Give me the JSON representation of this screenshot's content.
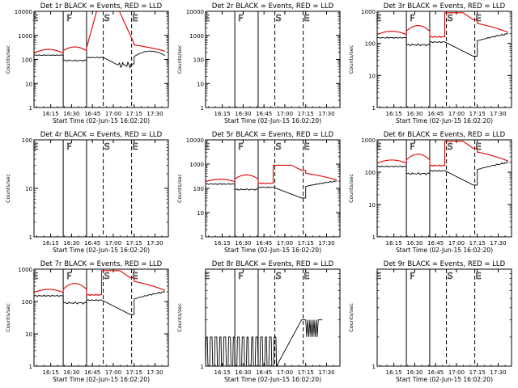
{
  "figure": {
    "start_label": "Start Time (02-Jun-15 16:02:20)",
    "ylabel": "Counts/sec"
  },
  "chart_data": [
    {
      "type": "line",
      "title": "Det 1r  BLACK = Events, RED = LLD",
      "ylim": [
        1,
        10000
      ],
      "yticks": [
        1,
        10,
        100,
        1000,
        10000
      ],
      "xlim": [
        16.05,
        17.66
      ],
      "xticks": [
        "16:15",
        "16:30",
        "16:45",
        "17:00",
        "17:15",
        "17:30"
      ],
      "markers": [
        "E",
        "F",
        "S",
        "E"
      ],
      "red_line": "vert"
    },
    {
      "type": "line",
      "title": "Det 2r  BLACK = Events, RED = LLD",
      "ylim": [
        1,
        10000
      ],
      "yticks": [
        1,
        10,
        100,
        1000,
        10000
      ],
      "xlim": [
        16.05,
        17.66
      ],
      "xticks": [
        "16:15",
        "16:30",
        "16:45",
        "17:00",
        "17:15",
        "17:30"
      ],
      "markers": [
        "E",
        "F",
        "S",
        "E"
      ],
      "red_line": "none"
    },
    {
      "type": "line",
      "title": "Det 3r  BLACK = Events, RED = LLD",
      "ylim": [
        1,
        1000
      ],
      "yticks": [
        1,
        10,
        100,
        1000
      ],
      "xlim": [
        16.05,
        17.66
      ],
      "xticks": [
        "16:15",
        "16:30",
        "16:45",
        "17:00",
        "17:15",
        "17:30"
      ],
      "markers": [
        "E",
        "F",
        "S",
        "E"
      ],
      "red_line": "step"
    },
    {
      "type": "line",
      "title": "Det 4r  BLACK = Events, RED = LLD",
      "ylim": [
        1,
        100
      ],
      "yticks": [
        1,
        10,
        100
      ],
      "xlim": [
        16.05,
        17.66
      ],
      "xticks": [
        "16:15",
        "16:30",
        "16:45",
        "17:00",
        "17:15",
        "17:30"
      ],
      "markers": [
        "E",
        "F",
        "S",
        "E"
      ],
      "red_line": "none"
    },
    {
      "type": "line",
      "title": "Det 5r  BLACK = Events, RED = LLD",
      "ylim": [
        1,
        10000
      ],
      "yticks": [
        1,
        10,
        100,
        1000,
        10000
      ],
      "xlim": [
        16.05,
        17.66
      ],
      "xticks": [
        "16:15",
        "16:30",
        "16:45",
        "17:00",
        "17:15",
        "17:30"
      ],
      "markers": [
        "E",
        "F",
        "S",
        "E"
      ],
      "red_line": "step"
    },
    {
      "type": "line",
      "title": "Det 6r  BLACK = Events, RED = LLD",
      "ylim": [
        1,
        1000
      ],
      "yticks": [
        1,
        10,
        100,
        1000
      ],
      "xlim": [
        16.05,
        17.66
      ],
      "xticks": [
        "16:15",
        "16:30",
        "16:45",
        "17:00",
        "17:15",
        "17:30"
      ],
      "markers": [
        "E",
        "F",
        "S",
        "E"
      ],
      "red_line": "step"
    },
    {
      "type": "line",
      "title": "Det 7r  BLACK = Events, RED = LLD",
      "ylim": [
        1,
        1000
      ],
      "yticks": [
        1,
        10,
        100,
        1000
      ],
      "xlim": [
        16.05,
        17.66
      ],
      "xticks": [
        "16:15",
        "16:30",
        "16:45",
        "17:00",
        "17:15",
        "17:30"
      ],
      "markers": [
        "E",
        "F",
        "S",
        "E"
      ],
      "red_line": "step"
    },
    {
      "type": "line",
      "title": "Det 8r  BLACK = Events, RED = LLD",
      "ylim": [
        1,
        10
      ],
      "yticks": [
        1
      ],
      "xlim": [
        16.05,
        17.66
      ],
      "xticks": [
        "16:15",
        "16:30",
        "16:45",
        "17:00",
        "17:15",
        "17:30"
      ],
      "markers": [
        "E",
        "F",
        "S",
        "E"
      ],
      "red_line": "none"
    },
    {
      "type": "line",
      "title": "Det 9r  BLACK = Events, RED = LLD",
      "ylim": [
        1,
        10
      ],
      "yticks": [
        1
      ],
      "xlim": [
        16.05,
        17.66
      ],
      "xticks": [
        "16:15",
        "16:30",
        "16:45",
        "17:00",
        "17:15",
        "17:30"
      ],
      "markers": [
        "E",
        "F",
        "S",
        "E"
      ],
      "red_line": "none"
    }
  ],
  "colors": {
    "events": "#000000",
    "lld": "#e00000",
    "axes": "#000000"
  }
}
